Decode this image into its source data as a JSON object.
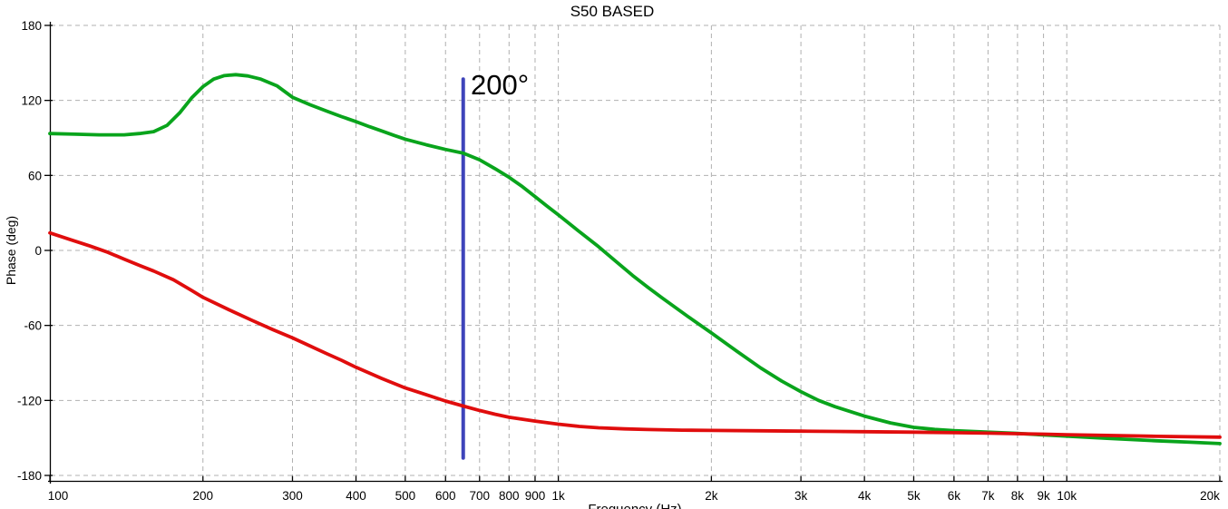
{
  "chart_data": {
    "type": "line",
    "title": "S50 BASED",
    "xlabel": "Frequency (Hz)",
    "ylabel": "Phase (deg)",
    "x_scale": "log",
    "xlim": [
      100,
      20000
    ],
    "ylim": [
      -180,
      180
    ],
    "grid": true,
    "legend": "none",
    "colors": {
      "axis": "#000000",
      "gridline": "#b0b0b0",
      "background": "#ffffff"
    },
    "y_ticks": [
      {
        "value": 180,
        "label": "180"
      },
      {
        "value": 120,
        "label": "120"
      },
      {
        "value": 60,
        "label": "60"
      },
      {
        "value": 0,
        "label": "0"
      },
      {
        "value": -60,
        "label": "-60"
      },
      {
        "value": -120,
        "label": "-120"
      },
      {
        "value": -180,
        "label": "-180"
      }
    ],
    "x_ticks": [
      {
        "value": 100,
        "label": "100"
      },
      {
        "value": 200,
        "label": "200"
      },
      {
        "value": 300,
        "label": "300"
      },
      {
        "value": 400,
        "label": "400"
      },
      {
        "value": 500,
        "label": "500"
      },
      {
        "value": 600,
        "label": "600"
      },
      {
        "value": 700,
        "label": "700"
      },
      {
        "value": 800,
        "label": "800"
      },
      {
        "value": 900,
        "label": "900"
      },
      {
        "value": 1000,
        "label": "1k"
      },
      {
        "value": 2000,
        "label": "2k"
      },
      {
        "value": 3000,
        "label": "3k"
      },
      {
        "value": 4000,
        "label": "4k"
      },
      {
        "value": 5000,
        "label": "5k"
      },
      {
        "value": 6000,
        "label": "6k"
      },
      {
        "value": 7000,
        "label": "7k"
      },
      {
        "value": 8000,
        "label": "8k"
      },
      {
        "value": 9000,
        "label": "9k"
      },
      {
        "value": 10000,
        "label": "10k"
      },
      {
        "value": 20000,
        "label": "20k"
      }
    ],
    "series": [
      {
        "name": "upper-phase-curve",
        "color": "#09a41c",
        "points": [
          [
            100,
            93.5
          ],
          [
            112,
            93
          ],
          [
            125,
            92.5
          ],
          [
            140,
            92.5
          ],
          [
            150,
            93.5
          ],
          [
            160,
            95
          ],
          [
            170,
            100
          ],
          [
            180,
            110
          ],
          [
            190,
            122
          ],
          [
            200,
            131
          ],
          [
            210,
            137
          ],
          [
            220,
            139.8
          ],
          [
            232,
            140.6
          ],
          [
            245,
            139.6
          ],
          [
            260,
            137
          ],
          [
            280,
            131.5
          ],
          [
            300,
            122.5
          ],
          [
            325,
            116.5
          ],
          [
            350,
            111.5
          ],
          [
            375,
            107
          ],
          [
            400,
            103
          ],
          [
            425,
            99
          ],
          [
            450,
            95.5
          ],
          [
            475,
            92
          ],
          [
            500,
            89
          ],
          [
            550,
            84.5
          ],
          [
            600,
            80.8
          ],
          [
            650,
            77.8
          ],
          [
            700,
            72.5
          ],
          [
            750,
            65.5
          ],
          [
            800,
            58.5
          ],
          [
            850,
            51
          ],
          [
            900,
            43
          ],
          [
            950,
            35.5
          ],
          [
            1000,
            28.5
          ],
          [
            1100,
            15
          ],
          [
            1200,
            3
          ],
          [
            1300,
            -9
          ],
          [
            1400,
            -20
          ],
          [
            1500,
            -29.5
          ],
          [
            1600,
            -38
          ],
          [
            1800,
            -53
          ],
          [
            2000,
            -66
          ],
          [
            2250,
            -81
          ],
          [
            2500,
            -94
          ],
          [
            2750,
            -104.5
          ],
          [
            3000,
            -113
          ],
          [
            3250,
            -120
          ],
          [
            3500,
            -125
          ],
          [
            4000,
            -132.5
          ],
          [
            4500,
            -138
          ],
          [
            5000,
            -141.5
          ],
          [
            5500,
            -143.2
          ],
          [
            6000,
            -144.2
          ],
          [
            7000,
            -145.4
          ],
          [
            8000,
            -146.4
          ],
          [
            9000,
            -147.6
          ],
          [
            10000,
            -148.6
          ],
          [
            12000,
            -150.3
          ],
          [
            15000,
            -152.3
          ],
          [
            17500,
            -153.4
          ],
          [
            20000,
            -154.5
          ]
        ]
      },
      {
        "name": "lower-phase-curve",
        "color": "#e00d0d",
        "points": [
          [
            100,
            14
          ],
          [
            110,
            8.5
          ],
          [
            120,
            3.5
          ],
          [
            130,
            -1.5
          ],
          [
            140,
            -7
          ],
          [
            150,
            -12
          ],
          [
            160,
            -16.5
          ],
          [
            175,
            -23.5
          ],
          [
            190,
            -32
          ],
          [
            200,
            -37.5
          ],
          [
            225,
            -47.5
          ],
          [
            250,
            -56
          ],
          [
            275,
            -63.5
          ],
          [
            300,
            -70
          ],
          [
            325,
            -76.5
          ],
          [
            350,
            -82.5
          ],
          [
            375,
            -88
          ],
          [
            400,
            -93.5
          ],
          [
            450,
            -102.5
          ],
          [
            500,
            -110
          ],
          [
            550,
            -115.5
          ],
          [
            600,
            -120.5
          ],
          [
            650,
            -124.5
          ],
          [
            700,
            -128
          ],
          [
            750,
            -131
          ],
          [
            800,
            -133.5
          ],
          [
            900,
            -136.5
          ],
          [
            1000,
            -139
          ],
          [
            1100,
            -140.8
          ],
          [
            1200,
            -141.9
          ],
          [
            1350,
            -142.8
          ],
          [
            1500,
            -143.3
          ],
          [
            1750,
            -143.8
          ],
          [
            2000,
            -144
          ],
          [
            2500,
            -144.3
          ],
          [
            3000,
            -144.6
          ],
          [
            3500,
            -144.8
          ],
          [
            4000,
            -145
          ],
          [
            5000,
            -145.4
          ],
          [
            6000,
            -145.8
          ],
          [
            7000,
            -146.2
          ],
          [
            8000,
            -146.6
          ],
          [
            9000,
            -147
          ],
          [
            10000,
            -147.4
          ],
          [
            12000,
            -148
          ],
          [
            15000,
            -148.7
          ],
          [
            20000,
            -149.4
          ]
        ]
      }
    ],
    "annotation": {
      "type": "vline",
      "label": "200°",
      "color": "#3e44ba",
      "freq": 650,
      "phase_top": 137,
      "phase_bottom": -166
    }
  }
}
